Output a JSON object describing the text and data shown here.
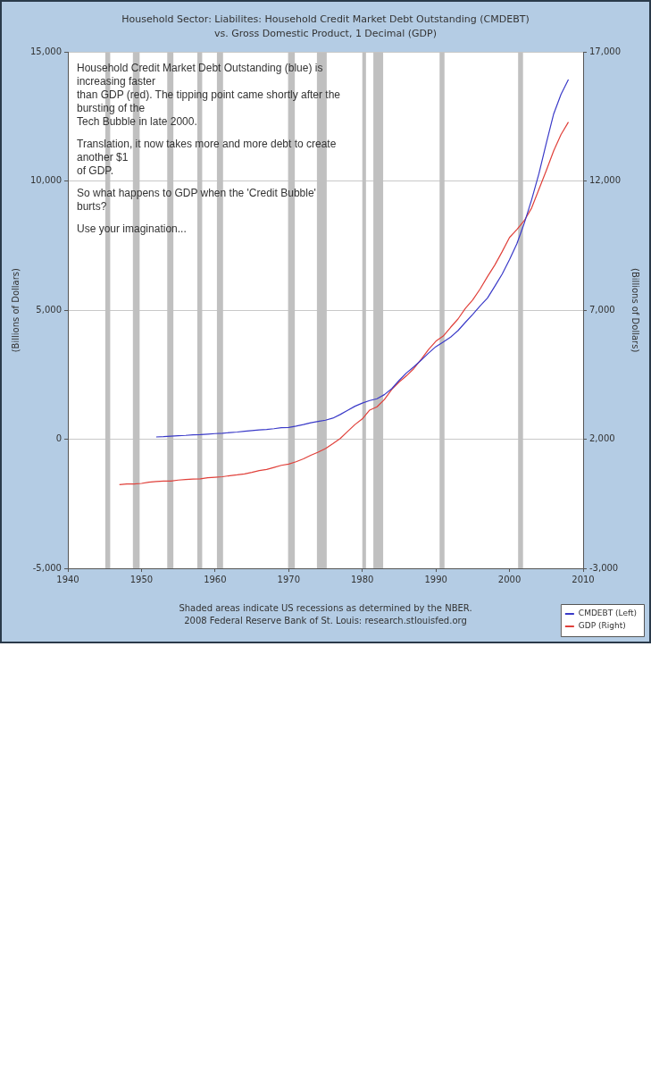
{
  "chart_data": {
    "type": "line",
    "title": "Household Sector: Liabilites: Household Credit Market Debt Outstanding (CMDEBT)",
    "subtitle": "vs. Gross Domestic Product, 1 Decimal (GDP)",
    "ylabel": "(Billions of Dollars)",
    "y2label": "(Billions of Dollars)",
    "series": [
      {
        "name": "CMDEBT (Left)",
        "color": "#3a3ac8",
        "x": [
          "1952",
          "1953",
          "1954",
          "1955",
          "1956",
          "1957",
          "1958",
          "1959",
          "1960",
          "1961",
          "1962",
          "1963",
          "1964",
          "1965",
          "1966",
          "1967",
          "1968",
          "1969",
          "1970",
          "1971",
          "1972",
          "1973",
          "1974",
          "1975",
          "1976",
          "1977",
          "1978",
          "1979",
          "1980",
          "1981",
          "1982",
          "1983",
          "1984",
          "1985",
          "1986",
          "1987",
          "1988",
          "1989",
          "1990",
          "1991",
          "1992",
          "1993",
          "1994",
          "1995",
          "1996",
          "1997",
          "1998",
          "1999",
          "2000",
          "2001",
          "2002",
          "2003",
          "2004",
          "2005",
          "2006",
          "2007",
          "2008"
        ],
        "values": [
          90,
          100,
          120,
          140,
          150,
          170,
          180,
          200,
          220,
          230,
          260,
          280,
          310,
          340,
          360,
          380,
          410,
          450,
          460,
          510,
          570,
          640,
          690,
          740,
          820,
          960,
          1120,
          1280,
          1400,
          1500,
          1570,
          1730,
          1960,
          2280,
          2570,
          2810,
          3070,
          3340,
          3590,
          3770,
          3960,
          4210,
          4530,
          4840,
          5170,
          5470,
          5930,
          6400,
          6960,
          7580,
          8370,
          9280,
          10300,
          11480,
          12610,
          13370,
          13940
        ]
      },
      {
        "name": "GDP (Right)",
        "color": "#e0403a",
        "axis": "y2",
        "x": [
          "1947",
          "1948",
          "1949",
          "1950",
          "1951",
          "1952",
          "1953",
          "1954",
          "1955",
          "1956",
          "1957",
          "1958",
          "1959",
          "1960",
          "1961",
          "1962",
          "1963",
          "1964",
          "1965",
          "1966",
          "1967",
          "1968",
          "1969",
          "1970",
          "1971",
          "1972",
          "1973",
          "1974",
          "1975",
          "1976",
          "1977",
          "1978",
          "1979",
          "1980",
          "1981",
          "1982",
          "1983",
          "1984",
          "1985",
          "1986",
          "1987",
          "1988",
          "1989",
          "1990",
          "1991",
          "1992",
          "1993",
          "1994",
          "1995",
          "1996",
          "1997",
          "1998",
          "1999",
          "2000",
          "2001",
          "2002",
          "2003",
          "2004",
          "2005",
          "2006",
          "2007",
          "2008"
        ],
        "values": [
          240,
          270,
          270,
          290,
          340,
          360,
          380,
          380,
          420,
          440,
          460,
          470,
          510,
          530,
          550,
          590,
          620,
          660,
          720,
          790,
          830,
          910,
          990,
          1040,
          1130,
          1240,
          1380,
          1500,
          1640,
          1830,
          2030,
          2300,
          2570,
          2790,
          3130,
          3260,
          3540,
          3930,
          4220,
          4460,
          4740,
          5100,
          5480,
          5800,
          6000,
          6340,
          6660,
          7070,
          7400,
          7820,
          8300,
          8750,
          9270,
          9820,
          10130,
          10470,
          10960,
          11690,
          12420,
          13180,
          13810,
          14290
        ]
      }
    ],
    "xlim": [
      "1940",
      "2010"
    ],
    "xticks": [
      "1940",
      "1950",
      "1960",
      "1970",
      "1980",
      "1990",
      "2000",
      "2010"
    ],
    "ylim": [
      -5000,
      15000
    ],
    "yticks": [
      {
        "value": -5000,
        "label": "-5,000"
      },
      0,
      {
        "value": 5000,
        "label": "5,000"
      },
      {
        "value": 10000,
        "label": "10,000"
      },
      {
        "value": 15000,
        "label": "15,000"
      }
    ],
    "y2lim": [
      -3000,
      17000
    ],
    "y2ticks": [
      {
        "value": -3000,
        "label": "-3,000"
      },
      {
        "value": 2000,
        "label": "2,000"
      },
      {
        "value": 7000,
        "label": "7,000"
      },
      {
        "value": 12000,
        "label": "12,000"
      },
      {
        "value": 17000,
        "label": "17,000"
      }
    ],
    "grid": "y",
    "marker": "none",
    "legend": "bottom right",
    "bands": [
      {
        "axis": "x",
        "from": "1945-02",
        "to": "1945-10",
        "color": "#c0c0c0"
      },
      {
        "axis": "x",
        "from": "1948-11",
        "to": "1949-10",
        "color": "#c0c0c0"
      },
      {
        "axis": "x",
        "from": "1953-07",
        "to": "1954-05",
        "color": "#c0c0c0"
      },
      {
        "axis": "x",
        "from": "1957-08",
        "to": "1958-04",
        "color": "#c0c0c0"
      },
      {
        "axis": "x",
        "from": "1960-04",
        "to": "1961-02",
        "color": "#c0c0c0"
      },
      {
        "axis": "x",
        "from": "1969-12",
        "to": "1970-11",
        "color": "#c0c0c0"
      },
      {
        "axis": "x",
        "from": "1973-11",
        "to": "1975-03",
        "color": "#c0c0c0"
      },
      {
        "axis": "x",
        "from": "1980-01",
        "to": "1980-07",
        "color": "#c0c0c0"
      },
      {
        "axis": "x",
        "from": "1981-07",
        "to": "1982-11",
        "color": "#c0c0c0"
      },
      {
        "axis": "x",
        "from": "1990-07",
        "to": "1991-03",
        "color": "#c0c0c0"
      },
      {
        "axis": "x",
        "from": "2001-03",
        "to": "2001-11",
        "color": "#c0c0c0"
      }
    ],
    "annotations": [
      "Household Credit Market Debt Outstanding (blue) is increasing faster\nthan GDP (red). The tipping point came shortly after the bursting of the\nTech Bubble in late 2000.\n\nTranslation, it now takes more and more debt to create another $1\nof GDP.\n\nSo what happens to GDP when the 'Credit Bubble' burts?\n\nUse your imagination...",
      "Shaded areas indicate US recessions as determined by the NBER.\n2008 Federal Reserve Bank of St. Louis: research.stlouisfed.org"
    ]
  }
}
